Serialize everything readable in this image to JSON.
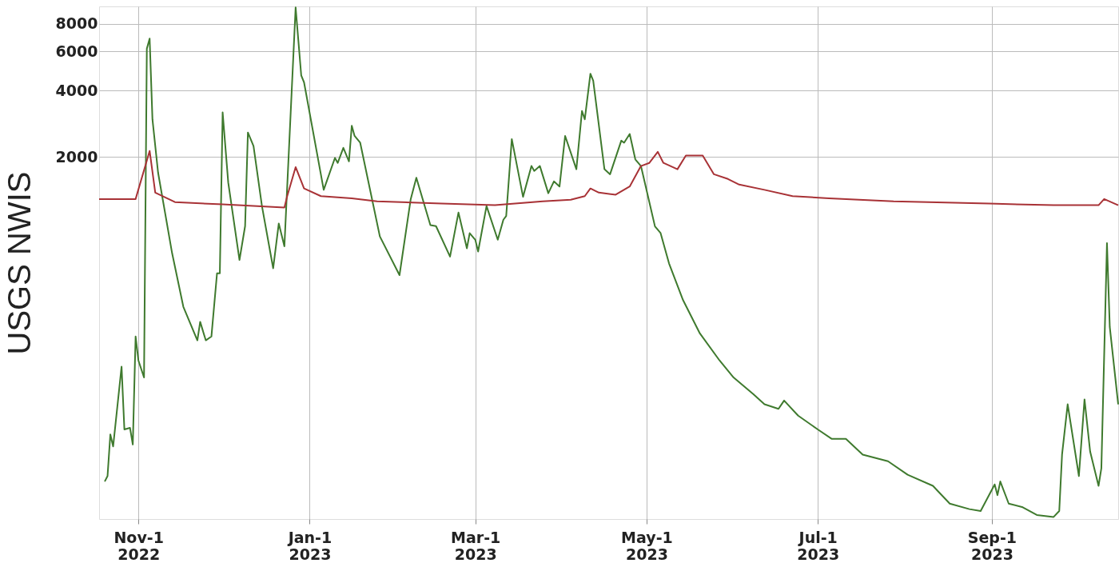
{
  "chart_data": {
    "type": "line",
    "ylabel": "USGS NWIS",
    "log": true,
    "grid": true,
    "legend": false,
    "marker": "none",
    "line_style": "solid",
    "xlim": [
      "2022-10-18",
      "2023-10-16"
    ],
    "xticks": [
      {
        "value": "2022-11-01",
        "label": "Nov-1\n2022"
      },
      {
        "value": "2023-01-01",
        "label": "Jan-1\n2023"
      },
      {
        "value": "2023-03-01",
        "label": "Mar-1\n2023"
      },
      {
        "value": "2023-05-01",
        "label": "May-1\n2023"
      },
      {
        "value": "2023-07-01",
        "label": "Jul-1\n2023"
      },
      {
        "value": "2023-09-01",
        "label": "Sep-1\n2023"
      }
    ],
    "ylim": [
      46,
      9600
    ],
    "yticks": [
      2000,
      4000,
      6000,
      8000
    ],
    "series": [
      {
        "color": "#3f7a2e",
        "x": [
          "2022-10-20",
          "2022-10-21",
          "2022-10-22",
          "2022-10-23",
          "2022-10-26",
          "2022-10-27",
          "2022-10-29",
          "2022-10-30",
          "2022-10-31",
          "2022-11-01",
          "2022-11-03",
          "2022-11-04",
          "2022-11-05",
          "2022-11-06",
          "2022-11-08",
          "2022-11-13",
          "2022-11-17",
          "2022-11-22",
          "2022-11-23",
          "2022-11-25",
          "2022-11-27",
          "2022-11-29",
          "2022-11-30",
          "2022-12-01",
          "2022-12-03",
          "2022-12-07",
          "2022-12-09",
          "2022-12-10",
          "2022-12-12",
          "2022-12-15",
          "2022-12-19",
          "2022-12-21",
          "2022-12-23",
          "2022-12-27",
          "2022-12-29",
          "2022-12-30",
          "2023-01-06",
          "2023-01-10",
          "2023-01-11",
          "2023-01-13",
          "2023-01-15",
          "2023-01-16",
          "2023-01-17",
          "2023-01-19",
          "2023-01-26",
          "2023-02-02",
          "2023-02-06",
          "2023-02-08",
          "2023-02-13",
          "2023-02-15",
          "2023-02-20",
          "2023-02-23",
          "2023-02-26",
          "2023-02-27",
          "2023-03-01",
          "2023-03-02",
          "2023-03-05",
          "2023-03-09",
          "2023-03-11",
          "2023-03-12",
          "2023-03-14",
          "2023-03-18",
          "2023-03-21",
          "2023-03-22",
          "2023-03-24",
          "2023-03-27",
          "2023-03-29",
          "2023-03-31",
          "2023-04-02",
          "2023-04-06",
          "2023-04-08",
          "2023-04-09",
          "2023-04-11",
          "2023-04-12",
          "2023-04-16",
          "2023-04-18",
          "2023-04-22",
          "2023-04-23",
          "2023-04-25",
          "2023-04-27",
          "2023-04-29",
          "2023-05-04",
          "2023-05-06",
          "2023-05-09",
          "2023-05-14",
          "2023-05-20",
          "2023-05-27",
          "2023-06-01",
          "2023-06-08",
          "2023-06-12",
          "2023-06-17",
          "2023-06-19",
          "2023-06-24",
          "2023-07-01",
          "2023-07-06",
          "2023-07-11",
          "2023-07-17",
          "2023-07-26",
          "2023-08-02",
          "2023-08-11",
          "2023-08-17",
          "2023-08-24",
          "2023-08-28",
          "2023-09-02",
          "2023-09-03",
          "2023-09-04",
          "2023-09-07",
          "2023-09-12",
          "2023-09-17",
          "2023-09-23",
          "2023-09-25",
          "2023-09-26",
          "2023-09-28",
          "2023-10-02",
          "2023-10-04",
          "2023-10-06",
          "2023-10-09",
          "2023-10-10",
          "2023-10-12",
          "2023-10-13",
          "2023-10-16"
        ],
        "values": [
          68,
          72,
          111,
          98,
          225,
          117,
          119,
          100,
          308,
          240,
          201,
          6180,
          6860,
          2960,
          1700,
          734,
          420,
          296,
          359,
          296,
          308,
          595,
          595,
          3180,
          1530,
          684,
          973,
          2580,
          2240,
          1200,
          627,
          1000,
          788,
          9500,
          4670,
          4350,
          1420,
          1980,
          1880,
          2200,
          1910,
          2770,
          2490,
          2320,
          874,
          584,
          1290,
          1610,
          983,
          973,
          708,
          1120,
          772,
          904,
          844,
          747,
          1200,
          844,
          1040,
          1080,
          2410,
          1320,
          1820,
          1730,
          1820,
          1370,
          1550,
          1470,
          2490,
          1760,
          3230,
          2960,
          4760,
          4430,
          1760,
          1670,
          2370,
          2320,
          2540,
          1950,
          1820,
          970,
          905,
          660,
          450,
          318,
          240,
          201,
          169,
          152,
          145,
          158,
          135,
          117,
          106,
          106,
          90,
          84,
          73,
          65,
          54,
          51,
          50,
          66,
          59,
          68,
          54,
          52,
          48,
          47,
          50,
          90,
          152,
          72,
          160,
          93,
          65,
          78,
          815,
          340,
          152
        ]
      },
      {
        "color": "#a83236",
        "x": [
          "2022-10-18",
          "2022-10-31",
          "2022-11-05",
          "2022-11-07",
          "2022-11-14",
          "2022-12-01",
          "2022-12-23",
          "2022-12-24",
          "2022-12-27",
          "2022-12-30",
          "2023-01-05",
          "2023-01-16",
          "2023-01-25",
          "2023-02-17",
          "2023-03-08",
          "2023-03-25",
          "2023-04-04",
          "2023-04-09",
          "2023-04-11",
          "2023-04-14",
          "2023-04-20",
          "2023-04-25",
          "2023-04-29",
          "2023-05-02",
          "2023-05-05",
          "2023-05-07",
          "2023-05-12",
          "2023-05-15",
          "2023-05-21",
          "2023-05-25",
          "2023-05-30",
          "2023-06-03",
          "2023-06-12",
          "2023-06-22",
          "2023-07-05",
          "2023-07-28",
          "2023-08-31",
          "2023-09-23",
          "2023-10-09",
          "2023-10-11",
          "2023-10-16"
        ],
        "values": [
          1290,
          1290,
          2130,
          1380,
          1250,
          1220,
          1180,
          1330,
          1800,
          1440,
          1330,
          1300,
          1260,
          1230,
          1210,
          1260,
          1280,
          1330,
          1440,
          1380,
          1350,
          1470,
          1820,
          1880,
          2110,
          1880,
          1760,
          2030,
          2030,
          1670,
          1590,
          1500,
          1420,
          1330,
          1300,
          1260,
          1230,
          1210,
          1210,
          1290,
          1210
        ]
      }
    ]
  }
}
